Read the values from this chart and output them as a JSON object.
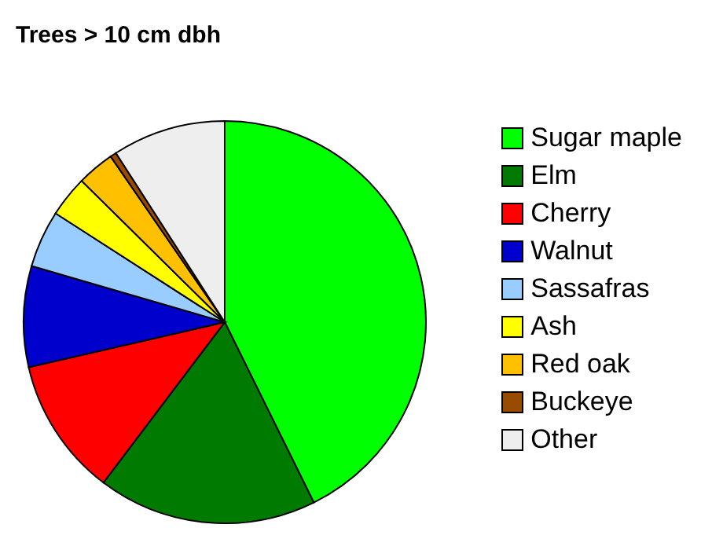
{
  "chart_data": {
    "type": "pie",
    "title": "Trees > 10 cm dbh",
    "categories": [
      "Sugar maple",
      "Elm",
      "Cherry",
      "Walnut",
      "Sassafras",
      "Ash",
      "Red oak",
      "Buckeye",
      "Other"
    ],
    "values": [
      42.7,
      17.6,
      11.1,
      8.1,
      4.6,
      3.3,
      3.0,
      0.5,
      9.1
    ],
    "colors": [
      "#00ff00",
      "#007a00",
      "#ff0000",
      "#0000cc",
      "#99ccff",
      "#ffff00",
      "#ffc000",
      "#994c00",
      "#eeeeee"
    ],
    "legend": "right"
  }
}
